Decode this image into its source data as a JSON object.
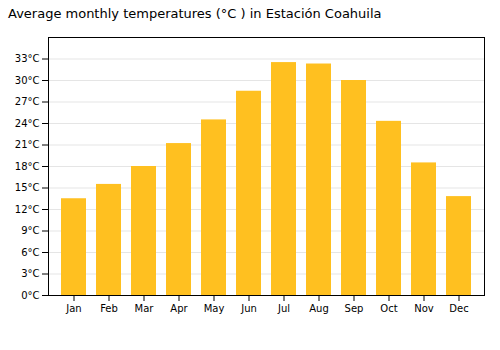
{
  "chart_data": {
    "type": "bar",
    "title": "Average monthly temperatures (°C ) in Estación Coahuila",
    "categories": [
      "Jan",
      "Feb",
      "Mar",
      "Apr",
      "May",
      "Jun",
      "Jul",
      "Aug",
      "Sep",
      "Oct",
      "Nov",
      "Dec"
    ],
    "values": [
      13.5,
      15.5,
      18.0,
      21.2,
      24.5,
      28.5,
      32.5,
      32.3,
      30.0,
      24.3,
      18.5,
      13.8
    ],
    "color": "#FFC020",
    "ylim": [
      0,
      36
    ],
    "yticks": [
      {
        "value": 0,
        "label": "0°C"
      },
      {
        "value": 3,
        "label": "3°C"
      },
      {
        "value": 6,
        "label": "6°C"
      },
      {
        "value": 9,
        "label": "9°C"
      },
      {
        "value": 12,
        "label": "12°C"
      },
      {
        "value": 15,
        "label": "15°C"
      },
      {
        "value": 18,
        "label": "18°C"
      },
      {
        "value": 21,
        "label": "21°C"
      },
      {
        "value": 24,
        "label": "24°C"
      },
      {
        "value": 27,
        "label": "27°C"
      },
      {
        "value": 30,
        "label": "30°C"
      },
      {
        "value": 33,
        "label": "33°C"
      }
    ],
    "grid": true
  }
}
